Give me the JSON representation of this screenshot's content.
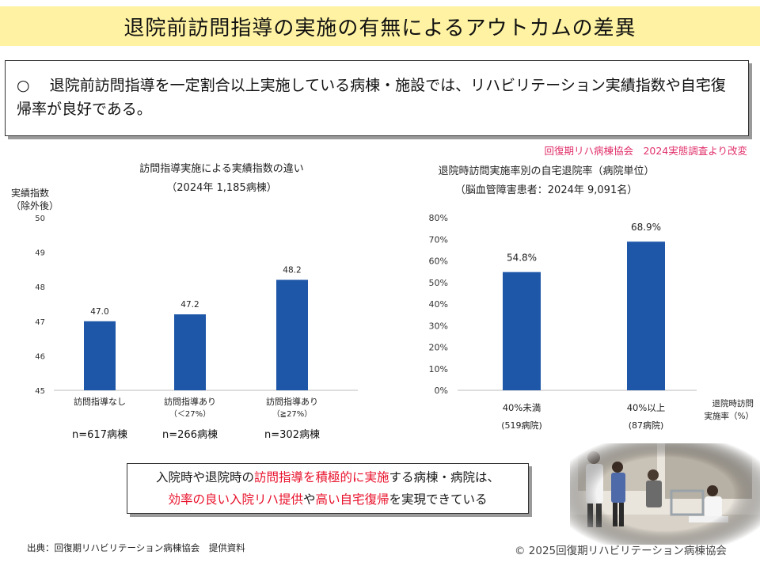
{
  "title": "退院前訪問指導の実施の有無によるアウトカムの差異",
  "summary": {
    "bullet": "○",
    "text": "退院前訪問指導を一定割合以上実施している病棟・施設では、リハビリテーション実績指数や自宅復帰率が良好である。"
  },
  "source_note": "回復期リハ病棟協会　2024実態調査より改変",
  "chart_data": [
    {
      "type": "bar",
      "title": "訪問指導実施による実績指数の違い",
      "subtitle": "（2024年 1,185病棟）",
      "ylabel_line1": "実績指数",
      "ylabel_line2": "（除外後）",
      "ylim": [
        45,
        50
      ],
      "yticks": [
        "50",
        "49",
        "48",
        "47",
        "46",
        "45"
      ],
      "categories": [
        {
          "line1": "訪問指導なし",
          "line2": ""
        },
        {
          "line1": "訪問指導あり",
          "line2": "（＜27%）"
        },
        {
          "line1": "訪問指導あり",
          "line2": "（≧27%）"
        }
      ],
      "values": [
        47.0,
        47.2,
        48.2
      ],
      "value_labels": [
        "47.0",
        "47.2",
        "48.2"
      ],
      "n_labels": [
        "n=617病棟",
        "n=266病棟",
        "n=302病棟"
      ],
      "bar_color": "#1f57a8",
      "grid": false
    },
    {
      "type": "bar",
      "title": "退院時訪問実施率別の自宅退院率（病院単位）",
      "subtitle": "（脳血管障害患者：2024年 9,091名）",
      "ylim": [
        0,
        80
      ],
      "yticks": [
        "80%",
        "70%",
        "60%",
        "50%",
        "40%",
        "30%",
        "20%",
        "10%",
        "0%"
      ],
      "xlabel_line1": "退院時訪問",
      "xlabel_line2": "実施率（%）",
      "categories": [
        {
          "line1": "40%未満",
          "line2": "(519病院)"
        },
        {
          "line1": "40%以上",
          "line2": "(87病院)"
        }
      ],
      "values": [
        54.8,
        68.9
      ],
      "value_labels": [
        "54.8%",
        "68.9%"
      ],
      "bar_color": "#1f57a8",
      "grid": false
    }
  ],
  "callout": {
    "l1_a": "入院時や退院時の",
    "l1_b": "訪問指導を積極的に実施",
    "l1_c": "する病棟・病院は、",
    "l2_a": "効率の良い入院リハ提供",
    "l2_b": "や",
    "l2_c": "高い自宅復帰",
    "l2_d": "を実現できている"
  },
  "citation": "出典：回復期リハビリテーション病棟協会　提供資料",
  "copyright": "© 2025回復期リハビリテーション病棟協会"
}
